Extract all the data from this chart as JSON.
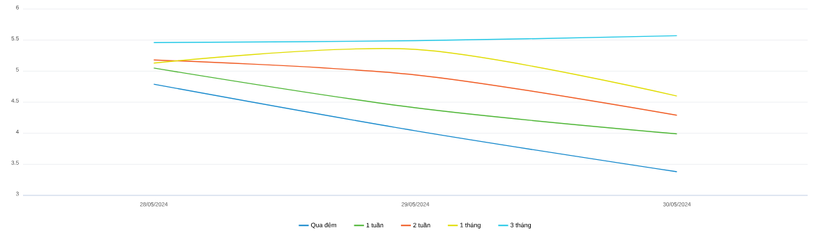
{
  "chart_data": {
    "type": "line",
    "categories": [
      "28/05/2024",
      "29/05/2024",
      "30/05/2024"
    ],
    "series": [
      {
        "name": "Qua đêm",
        "color": "#1488cc",
        "values": [
          4.79,
          4.04,
          3.38
        ]
      },
      {
        "name": "1 tuần",
        "color": "#4cb533",
        "values": [
          5.05,
          4.41,
          3.99
        ]
      },
      {
        "name": "2 tuần",
        "color": "#f05a22",
        "values": [
          5.18,
          4.94,
          4.29
        ]
      },
      {
        "name": "1 tháng",
        "color": "#e0dc00",
        "values": [
          5.13,
          5.35,
          4.6
        ]
      },
      {
        "name": "3 tháng",
        "color": "#22c8e6",
        "values": [
          5.46,
          5.49,
          5.57
        ]
      }
    ],
    "ylim": [
      3,
      6
    ],
    "yticks": [
      3,
      3.5,
      4,
      4.5,
      5,
      5.5,
      6
    ],
    "grid": "y",
    "legend": "bottom"
  }
}
